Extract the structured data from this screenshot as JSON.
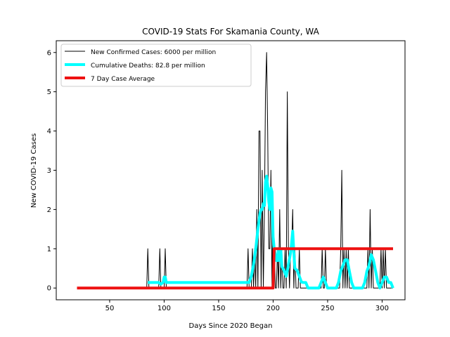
{
  "chart_data": {
    "type": "line",
    "title": "COVID-19 Stats For Skamania County, WA",
    "xlabel": "Days Since 2020 Began",
    "ylabel": "New COVID-19 Cases",
    "xlim": [
      1,
      321
    ],
    "ylim": [
      -0.3,
      6.3
    ],
    "xticks": [
      50,
      100,
      150,
      200,
      250,
      300
    ],
    "yticks": [
      0,
      1,
      2,
      3,
      4,
      5,
      6
    ],
    "grid": false,
    "legend_position": "top-left",
    "series": [
      {
        "name": "New Confirmed Cases: 6000 per million",
        "color": "#000000",
        "x": [
          20,
          84,
          85,
          86,
          95,
          96,
          97,
          100,
          101,
          102,
          176,
          177,
          178,
          180,
          181,
          182,
          183,
          184,
          185,
          186,
          187,
          188,
          189,
          190,
          191,
          192,
          193,
          194,
          195,
          196,
          197,
          198,
          199,
          200,
          201,
          202,
          203,
          204,
          205,
          206,
          207,
          208,
          209,
          210,
          211,
          212,
          213,
          214,
          215,
          216,
          217,
          218,
          219,
          220,
          221,
          222,
          223,
          224,
          225,
          226,
          227,
          244,
          245,
          246,
          247,
          248,
          249,
          250,
          261,
          262,
          263,
          264,
          265,
          266,
          267,
          268,
          269,
          270,
          286,
          287,
          288,
          289,
          290,
          291,
          292,
          298,
          299,
          300,
          301,
          302,
          303,
          304,
          310
        ],
        "y": [
          0,
          0,
          1,
          0,
          0,
          1,
          0,
          0,
          1,
          0,
          0,
          1,
          0,
          0,
          1,
          0,
          1,
          0,
          2,
          0,
          4,
          4,
          0,
          3,
          0,
          2,
          5,
          6,
          4,
          1,
          1,
          3,
          0,
          2,
          1,
          0,
          0,
          1,
          0,
          2,
          0,
          1,
          0,
          0,
          1,
          0,
          5,
          1,
          0,
          1,
          1,
          2,
          0,
          1,
          0,
          0,
          0,
          1,
          0,
          0,
          0,
          0,
          1,
          0,
          0,
          1,
          0,
          0,
          0,
          1,
          3,
          0,
          1,
          0,
          1,
          0,
          1,
          0,
          0,
          1,
          0,
          2,
          0,
          1,
          0,
          0,
          1,
          0,
          1,
          0,
          1,
          0,
          0
        ]
      },
      {
        "name": "Cumulative Deaths: 82.8 per million",
        "color": "#00ffff",
        "x": [
          85,
          86,
          88,
          90,
          92,
          95,
          97,
          99,
          100,
          101,
          102,
          104,
          106,
          108,
          176,
          178,
          180,
          182,
          184,
          186,
          188,
          189,
          190,
          191,
          192,
          193,
          194,
          195,
          196,
          197,
          198,
          199,
          200,
          201,
          202,
          203,
          204,
          205,
          206,
          207,
          208,
          210,
          212,
          214,
          216,
          217,
          218,
          219,
          220,
          222,
          224,
          226,
          228,
          230,
          232,
          234,
          236,
          238,
          240,
          242,
          244,
          246,
          248,
          250,
          252,
          254,
          256,
          258,
          260,
          262,
          264,
          266,
          268,
          270,
          272,
          274,
          276,
          278,
          280,
          282,
          284,
          286,
          288,
          290,
          292,
          294,
          296,
          298,
          300,
          302,
          304,
          306,
          308,
          310
        ],
        "y": [
          0.14,
          0.14,
          0.14,
          0.14,
          0.14,
          0.14,
          0.1,
          0.14,
          0.28,
          0.28,
          0.14,
          0.14,
          0.14,
          0.14,
          0.14,
          0.14,
          0.3,
          0.6,
          1.0,
          1.5,
          1.9,
          2.0,
          2.0,
          2.15,
          2.1,
          2.7,
          2.85,
          2.6,
          2.2,
          2.0,
          2.55,
          2.45,
          1.3,
          1.0,
          0.85,
          0.7,
          0.7,
          1.0,
          0.7,
          1.0,
          0.55,
          0.45,
          0.3,
          0.6,
          0.9,
          1.15,
          1.45,
          0.9,
          0.5,
          0.45,
          0.3,
          0.15,
          0.14,
          0.14,
          0.0,
          0.0,
          0.0,
          0.0,
          0.0,
          0.0,
          0.14,
          0.28,
          0.14,
          0.0,
          0.0,
          0.0,
          0.0,
          0.0,
          0.14,
          0.43,
          0.57,
          0.72,
          0.72,
          0.43,
          0.14,
          0.0,
          0.0,
          0.0,
          0.0,
          0.0,
          0.14,
          0.43,
          0.57,
          0.85,
          0.72,
          0.43,
          0.14,
          0.0,
          0.14,
          0.28,
          0.28,
          0.14,
          0.14,
          0.0
        ]
      },
      {
        "name": "7 Day Case Average",
        "color": "#ee1111",
        "x": [
          20,
          200,
          201,
          310
        ],
        "y": [
          0,
          0,
          1,
          1
        ]
      }
    ]
  }
}
